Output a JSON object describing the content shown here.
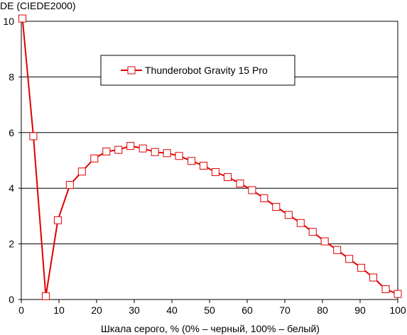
{
  "chart_data": {
    "type": "line",
    "ylabel": "DE (CIEDE2000)",
    "xlabel": "Шкала серого, % (0% – черный, 100% – белый)",
    "xlim": [
      0,
      100
    ],
    "ylim": [
      0,
      10
    ],
    "x_ticks": [
      "0",
      "10",
      "20",
      "30",
      "40",
      "50",
      "60",
      "70",
      "80",
      "90",
      "100"
    ],
    "y_ticks": [
      "0",
      "2",
      "4",
      "6",
      "8",
      "10"
    ],
    "grid": "horizontal",
    "legend_position": "top-center",
    "series": [
      {
        "name": "Thunderobot Gravity 15 Pro",
        "color": "#e00000",
        "marker": "square",
        "x": [
          0.3,
          3.2,
          6.5,
          9.7,
          12.9,
          16.1,
          19.4,
          22.6,
          25.8,
          29.0,
          32.3,
          35.5,
          38.7,
          41.9,
          45.2,
          48.4,
          51.6,
          54.8,
          58.1,
          61.3,
          64.5,
          67.7,
          71.0,
          74.2,
          77.4,
          80.6,
          83.9,
          87.1,
          90.3,
          93.5,
          96.8,
          100.0
        ],
        "y": [
          10.1,
          5.87,
          0.12,
          2.85,
          4.12,
          4.6,
          5.07,
          5.32,
          5.38,
          5.52,
          5.43,
          5.3,
          5.26,
          5.16,
          4.98,
          4.81,
          4.58,
          4.4,
          4.17,
          3.93,
          3.64,
          3.33,
          3.04,
          2.75,
          2.43,
          2.09,
          1.78,
          1.46,
          1.14,
          0.79,
          0.37,
          0.2
        ]
      }
    ]
  }
}
